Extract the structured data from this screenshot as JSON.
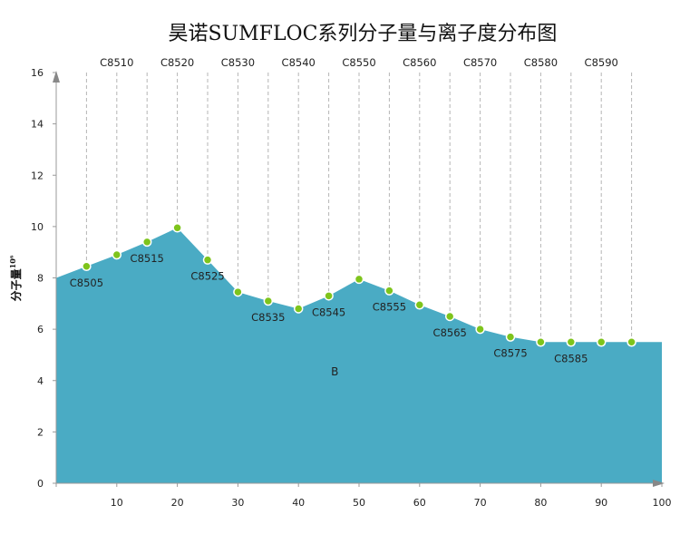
{
  "chart_data": {
    "type": "area",
    "title": "昊诺SUMFLOC系列分子量与离子度分布图",
    "ylabel": "分子量",
    "ylabel_sup": "10⁶",
    "xlim": [
      0,
      100
    ],
    "ylim": [
      0,
      16
    ],
    "x_ticks": [
      0,
      10,
      20,
      30,
      40,
      50,
      60,
      70,
      80,
      90,
      100
    ],
    "x_tick_labels": [
      "",
      "10",
      "20",
      "30",
      "40",
      "50",
      "60",
      "70",
      "80",
      "90",
      "100"
    ],
    "y_ticks": [
      0,
      2,
      4,
      6,
      8,
      10,
      12,
      14,
      16
    ],
    "grid": "vertical-dashed",
    "area_color": "#4aabc4",
    "point_color": "#7ec41c",
    "series": [
      {
        "name": "B",
        "x": [
          0,
          5,
          10,
          15,
          20,
          25,
          30,
          35,
          40,
          45,
          50,
          55,
          60,
          65,
          70,
          75,
          80,
          85,
          90,
          95,
          100
        ],
        "values": [
          8.0,
          8.45,
          8.9,
          9.4,
          9.95,
          8.7,
          7.45,
          7.1,
          6.8,
          7.3,
          7.95,
          7.5,
          6.95,
          6.5,
          6.0,
          5.7,
          5.5,
          5.5,
          5.5,
          5.5,
          5.5
        ],
        "markers": [
          false,
          true,
          true,
          true,
          true,
          true,
          true,
          true,
          true,
          true,
          true,
          true,
          true,
          true,
          true,
          true,
          true,
          true,
          true,
          true,
          false
        ]
      }
    ],
    "top_labels": [
      {
        "x": 10,
        "text": "C8510"
      },
      {
        "x": 20,
        "text": "C8520"
      },
      {
        "x": 30,
        "text": "C8530"
      },
      {
        "x": 40,
        "text": "C8540"
      },
      {
        "x": 50,
        "text": "C8550"
      },
      {
        "x": 60,
        "text": "C8560"
      },
      {
        "x": 70,
        "text": "C8570"
      },
      {
        "x": 80,
        "text": "C8580"
      },
      {
        "x": 90,
        "text": "C8590"
      }
    ],
    "point_labels": [
      {
        "x": 5,
        "text": "C8505"
      },
      {
        "x": 15,
        "text": "C8515"
      },
      {
        "x": 25,
        "text": "C8525"
      },
      {
        "x": 35,
        "text": "C8535"
      },
      {
        "x": 45,
        "text": "C8545"
      },
      {
        "x": 55,
        "text": "C8555"
      },
      {
        "x": 65,
        "text": "C8565"
      },
      {
        "x": 75,
        "text": "C8575"
      },
      {
        "x": 85,
        "text": "C8585"
      }
    ],
    "series_label": {
      "text": "B",
      "x": 46,
      "y": 4.2
    }
  }
}
